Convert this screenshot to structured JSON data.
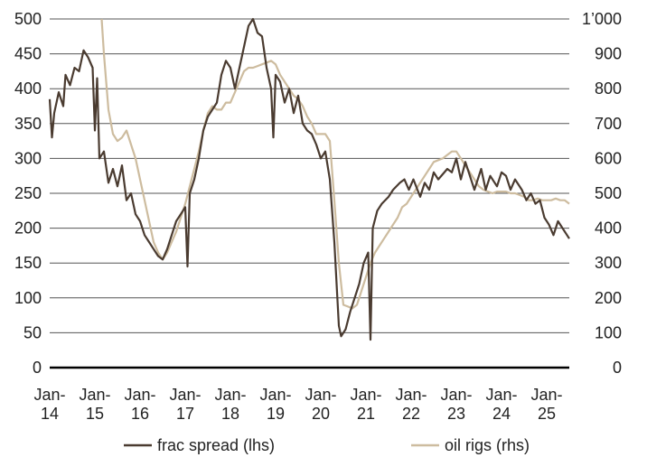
{
  "chart_data": {
    "type": "line",
    "title": "",
    "x_axis": {
      "ticks": [
        {
          "year": 2014,
          "label": [
            "Jan-",
            "14"
          ]
        },
        {
          "year": 2015,
          "label": [
            "Jan-",
            "15"
          ]
        },
        {
          "year": 2016,
          "label": [
            "Jan-",
            "16"
          ]
        },
        {
          "year": 2017,
          "label": [
            "Jan-",
            "17"
          ]
        },
        {
          "year": 2018,
          "label": [
            "Jan-",
            "18"
          ]
        },
        {
          "year": 2019,
          "label": [
            "Jan-",
            "19"
          ]
        },
        {
          "year": 2020,
          "label": [
            "Jan-",
            "20"
          ]
        },
        {
          "year": 2021,
          "label": [
            "Jan-",
            "21"
          ]
        },
        {
          "year": 2022,
          "label": [
            "Jan-",
            "22"
          ]
        },
        {
          "year": 2023,
          "label": [
            "Jan-",
            "23"
          ]
        },
        {
          "year": 2024,
          "label": [
            "Jan-",
            "24"
          ]
        },
        {
          "year": 2025,
          "label": [
            "Jan-",
            "25"
          ]
        }
      ],
      "range": [
        2014,
        2025.5
      ]
    },
    "y_left": {
      "min": 0,
      "max": 500,
      "ticks": [
        "0",
        "50",
        "100",
        "150",
        "200",
        "250",
        "300",
        "350",
        "400",
        "450",
        "500"
      ]
    },
    "y_right": {
      "min": 0,
      "max": 1000,
      "ticks": [
        "0",
        "100",
        "200",
        "300",
        "400",
        "500",
        "600",
        "700",
        "800",
        "900",
        "1’000"
      ]
    },
    "grid": "horizontal",
    "legend_position": "bottom",
    "series": [
      {
        "name": "frac spread (lhs)",
        "axis": "left",
        "color": "#4a3b30",
        "points": [
          [
            2014.0,
            385
          ],
          [
            2014.05,
            330
          ],
          [
            2014.1,
            365
          ],
          [
            2014.2,
            395
          ],
          [
            2014.3,
            375
          ],
          [
            2014.35,
            420
          ],
          [
            2014.45,
            405
          ],
          [
            2014.55,
            430
          ],
          [
            2014.65,
            425
          ],
          [
            2014.75,
            455
          ],
          [
            2014.85,
            445
          ],
          [
            2014.95,
            430
          ],
          [
            2015.0,
            340
          ],
          [
            2015.05,
            415
          ],
          [
            2015.1,
            300
          ],
          [
            2015.2,
            310
          ],
          [
            2015.3,
            265
          ],
          [
            2015.4,
            285
          ],
          [
            2015.5,
            260
          ],
          [
            2015.6,
            290
          ],
          [
            2015.7,
            240
          ],
          [
            2015.8,
            250
          ],
          [
            2015.9,
            220
          ],
          [
            2016.0,
            210
          ],
          [
            2016.1,
            190
          ],
          [
            2016.2,
            180
          ],
          [
            2016.3,
            170
          ],
          [
            2016.4,
            160
          ],
          [
            2016.5,
            155
          ],
          [
            2016.6,
            170
          ],
          [
            2016.7,
            190
          ],
          [
            2016.8,
            210
          ],
          [
            2016.9,
            220
          ],
          [
            2017.0,
            230
          ],
          [
            2017.05,
            145
          ],
          [
            2017.1,
            250
          ],
          [
            2017.2,
            270
          ],
          [
            2017.3,
            300
          ],
          [
            2017.4,
            340
          ],
          [
            2017.5,
            360
          ],
          [
            2017.6,
            370
          ],
          [
            2017.7,
            380
          ],
          [
            2017.8,
            420
          ],
          [
            2017.9,
            440
          ],
          [
            2018.0,
            430
          ],
          [
            2018.1,
            400
          ],
          [
            2018.2,
            430
          ],
          [
            2018.3,
            460
          ],
          [
            2018.4,
            490
          ],
          [
            2018.5,
            500
          ],
          [
            2018.6,
            480
          ],
          [
            2018.7,
            475
          ],
          [
            2018.8,
            430
          ],
          [
            2018.9,
            400
          ],
          [
            2018.95,
            330
          ],
          [
            2019.0,
            420
          ],
          [
            2019.1,
            410
          ],
          [
            2019.2,
            380
          ],
          [
            2019.3,
            400
          ],
          [
            2019.4,
            365
          ],
          [
            2019.5,
            390
          ],
          [
            2019.6,
            350
          ],
          [
            2019.7,
            340
          ],
          [
            2019.8,
            335
          ],
          [
            2019.9,
            320
          ],
          [
            2020.0,
            300
          ],
          [
            2020.1,
            310
          ],
          [
            2020.2,
            270
          ],
          [
            2020.3,
            180
          ],
          [
            2020.4,
            60
          ],
          [
            2020.45,
            45
          ],
          [
            2020.55,
            55
          ],
          [
            2020.65,
            80
          ],
          [
            2020.75,
            100
          ],
          [
            2020.85,
            120
          ],
          [
            2020.95,
            150
          ],
          [
            2021.05,
            165
          ],
          [
            2021.1,
            40
          ],
          [
            2021.15,
            200
          ],
          [
            2021.25,
            225
          ],
          [
            2021.35,
            235
          ],
          [
            2021.5,
            245
          ],
          [
            2021.6,
            255
          ],
          [
            2021.75,
            265
          ],
          [
            2021.85,
            270
          ],
          [
            2021.95,
            255
          ],
          [
            2022.05,
            270
          ],
          [
            2022.2,
            245
          ],
          [
            2022.3,
            265
          ],
          [
            2022.4,
            255
          ],
          [
            2022.5,
            280
          ],
          [
            2022.6,
            270
          ],
          [
            2022.8,
            285
          ],
          [
            2022.9,
            280
          ],
          [
            2023.0,
            300
          ],
          [
            2023.1,
            270
          ],
          [
            2023.2,
            295
          ],
          [
            2023.3,
            275
          ],
          [
            2023.4,
            255
          ],
          [
            2023.55,
            285
          ],
          [
            2023.65,
            255
          ],
          [
            2023.75,
            275
          ],
          [
            2023.9,
            260
          ],
          [
            2024.0,
            280
          ],
          [
            2024.1,
            275
          ],
          [
            2024.2,
            255
          ],
          [
            2024.3,
            270
          ],
          [
            2024.45,
            255
          ],
          [
            2024.55,
            240
          ],
          [
            2024.65,
            250
          ],
          [
            2024.75,
            235
          ],
          [
            2024.85,
            240
          ],
          [
            2024.95,
            215
          ],
          [
            2025.05,
            205
          ],
          [
            2025.15,
            190
          ],
          [
            2025.25,
            210
          ],
          [
            2025.35,
            200
          ],
          [
            2025.45,
            190
          ],
          [
            2025.5,
            185
          ]
        ]
      },
      {
        "name": "oil rigs (rhs)",
        "axis": "right",
        "color": "#cdbc9f",
        "points": [
          [
            2015.15,
            1000
          ],
          [
            2015.2,
            900
          ],
          [
            2015.25,
            820
          ],
          [
            2015.3,
            740
          ],
          [
            2015.4,
            670
          ],
          [
            2015.5,
            650
          ],
          [
            2015.6,
            660
          ],
          [
            2015.7,
            680
          ],
          [
            2015.8,
            640
          ],
          [
            2015.9,
            600
          ],
          [
            2016.0,
            540
          ],
          [
            2016.1,
            480
          ],
          [
            2016.2,
            420
          ],
          [
            2016.3,
            360
          ],
          [
            2016.4,
            330
          ],
          [
            2016.5,
            310
          ],
          [
            2016.6,
            330
          ],
          [
            2016.7,
            360
          ],
          [
            2016.8,
            390
          ],
          [
            2016.9,
            430
          ],
          [
            2017.0,
            470
          ],
          [
            2017.1,
            520
          ],
          [
            2017.2,
            570
          ],
          [
            2017.3,
            620
          ],
          [
            2017.4,
            680
          ],
          [
            2017.5,
            730
          ],
          [
            2017.6,
            750
          ],
          [
            2017.7,
            740
          ],
          [
            2017.8,
            740
          ],
          [
            2017.9,
            760
          ],
          [
            2018.0,
            760
          ],
          [
            2018.1,
            790
          ],
          [
            2018.2,
            820
          ],
          [
            2018.3,
            850
          ],
          [
            2018.4,
            860
          ],
          [
            2018.5,
            860
          ],
          [
            2018.6,
            865
          ],
          [
            2018.7,
            870
          ],
          [
            2018.8,
            875
          ],
          [
            2018.9,
            880
          ],
          [
            2019.0,
            870
          ],
          [
            2019.1,
            840
          ],
          [
            2019.2,
            820
          ],
          [
            2019.3,
            800
          ],
          [
            2019.4,
            780
          ],
          [
            2019.5,
            770
          ],
          [
            2019.6,
            750
          ],
          [
            2019.7,
            720
          ],
          [
            2019.8,
            700
          ],
          [
            2019.9,
            670
          ],
          [
            2020.0,
            670
          ],
          [
            2020.1,
            670
          ],
          [
            2020.2,
            650
          ],
          [
            2020.3,
            480
          ],
          [
            2020.4,
            300
          ],
          [
            2020.5,
            180
          ],
          [
            2020.6,
            175
          ],
          [
            2020.7,
            170
          ],
          [
            2020.8,
            180
          ],
          [
            2020.9,
            220
          ],
          [
            2021.0,
            260
          ],
          [
            2021.1,
            300
          ],
          [
            2021.2,
            330
          ],
          [
            2021.3,
            350
          ],
          [
            2021.4,
            370
          ],
          [
            2021.5,
            390
          ],
          [
            2021.6,
            410
          ],
          [
            2021.7,
            430
          ],
          [
            2021.8,
            460
          ],
          [
            2021.9,
            470
          ],
          [
            2022.0,
            490
          ],
          [
            2022.1,
            510
          ],
          [
            2022.2,
            530
          ],
          [
            2022.3,
            550
          ],
          [
            2022.4,
            570
          ],
          [
            2022.5,
            590
          ],
          [
            2022.6,
            595
          ],
          [
            2022.7,
            600
          ],
          [
            2022.8,
            610
          ],
          [
            2022.9,
            620
          ],
          [
            2023.0,
            620
          ],
          [
            2023.1,
            600
          ],
          [
            2023.2,
            580
          ],
          [
            2023.3,
            560
          ],
          [
            2023.4,
            540
          ],
          [
            2023.5,
            520
          ],
          [
            2023.6,
            510
          ],
          [
            2023.7,
            505
          ],
          [
            2023.8,
            500
          ],
          [
            2023.9,
            505
          ],
          [
            2024.0,
            505
          ],
          [
            2024.1,
            505
          ],
          [
            2024.2,
            500
          ],
          [
            2024.3,
            500
          ],
          [
            2024.4,
            495
          ],
          [
            2024.5,
            490
          ],
          [
            2024.6,
            480
          ],
          [
            2024.7,
            480
          ],
          [
            2024.8,
            485
          ],
          [
            2024.9,
            480
          ],
          [
            2025.0,
            480
          ],
          [
            2025.1,
            480
          ],
          [
            2025.2,
            485
          ],
          [
            2025.3,
            480
          ],
          [
            2025.4,
            480
          ],
          [
            2025.5,
            470
          ]
        ]
      }
    ]
  }
}
